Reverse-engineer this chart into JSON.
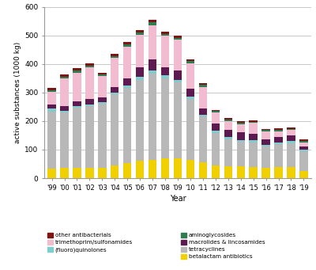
{
  "years": [
    "'99",
    "'00",
    "'01",
    "'02",
    "'03",
    "'04",
    "'05",
    "'06",
    "'07",
    "'08",
    "'09",
    "'10",
    "'11",
    "'12",
    "'13",
    "'14",
    "'15",
    "'16",
    "'17",
    "'18",
    "'19"
  ],
  "bar_order": [
    "betalactam antibiotics",
    "tetracyclines",
    "(fluoro)quinolones",
    "macrolides & lincosamides",
    "trimethoprim/sulfonamides",
    "aminoglycosides",
    "other antibacterials"
  ],
  "color_map": {
    "betalactam antibiotics": "#f0d000",
    "tetracyclines": "#b8b8b8",
    "(fluoro)quinolones": "#7ecece",
    "macrolides & lincosamides": "#5c1a50",
    "trimethoprim/sulfonamides": "#f2bcd0",
    "aminoglycosides": "#2e7d50",
    "other antibacterials": "#7d1515"
  },
  "data": {
    "betalactam antibiotics": [
      33,
      36,
      36,
      36,
      36,
      44,
      52,
      60,
      65,
      70,
      70,
      63,
      55,
      44,
      42,
      42,
      38,
      35,
      38,
      38,
      25
    ],
    "tetracyclines": [
      200,
      195,
      210,
      215,
      225,
      250,
      265,
      285,
      300,
      280,
      265,
      215,
      160,
      115,
      95,
      85,
      88,
      75,
      80,
      85,
      68
    ],
    "(fluoro)quinolones": [
      10,
      6,
      6,
      6,
      5,
      6,
      8,
      10,
      12,
      10,
      10,
      8,
      8,
      7,
      7,
      7,
      7,
      7,
      7,
      7,
      6
    ],
    "macrolides & lincosamides": [
      14,
      16,
      18,
      20,
      16,
      20,
      25,
      32,
      38,
      28,
      32,
      26,
      22,
      25,
      26,
      28,
      22,
      18,
      20,
      20,
      13
    ],
    "trimethoprim/sulfonamides": [
      45,
      95,
      100,
      110,
      75,
      100,
      110,
      115,
      120,
      110,
      108,
      90,
      75,
      38,
      30,
      26,
      38,
      28,
      20,
      18,
      14
    ],
    "aminoglycosides": [
      7,
      7,
      7,
      7,
      6,
      7,
      8,
      9,
      10,
      7,
      7,
      7,
      6,
      6,
      5,
      6,
      5,
      5,
      5,
      5,
      5
    ],
    "other antibacterials": [
      7,
      7,
      7,
      7,
      7,
      7,
      8,
      8,
      8,
      7,
      7,
      7,
      7,
      4,
      5,
      5,
      5,
      4,
      4,
      4,
      4
    ]
  },
  "ylim": [
    0,
    600
  ],
  "yticks": [
    0,
    100,
    200,
    300,
    400,
    500,
    600
  ],
  "ylabel": "active substances (1000 kg)",
  "xlabel": "Year",
  "bg_color": "#ffffff",
  "grid_color": "#c8c8c8",
  "bar_width": 0.65,
  "legend_left": [
    [
      "other antibacterials",
      "#7d1515"
    ],
    [
      "trimethoprim/sulfonamides",
      "#f2bcd0"
    ],
    [
      "(fluoro)quinolones",
      "#7ecece"
    ]
  ],
  "legend_right": [
    [
      "aminoglycosides",
      "#2e7d50"
    ],
    [
      "macrolides & lincosamides",
      "#5c1a50"
    ],
    [
      "tetracyclines",
      "#b8b8b8"
    ],
    [
      "betalactam antibiotics",
      "#f0d000"
    ]
  ]
}
